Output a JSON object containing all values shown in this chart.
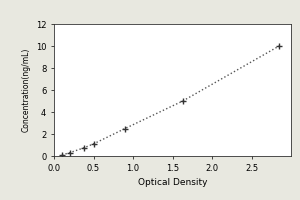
{
  "x_data": [
    0.1,
    0.2,
    0.38,
    0.5,
    0.9,
    1.63,
    2.85
  ],
  "y_data": [
    0.1,
    0.3,
    0.75,
    1.1,
    2.5,
    5.0,
    10.0
  ],
  "xlabel": "Optical Density",
  "ylabel": "Concentration(ng/mL)",
  "xlim": [
    0,
    3.0
  ],
  "ylim": [
    0,
    12
  ],
  "xticks": [
    0,
    0.5,
    1.0,
    1.5,
    2.0,
    2.5
  ],
  "yticks": [
    0,
    2,
    4,
    6,
    8,
    10,
    12
  ],
  "line_color": "#555555",
  "marker_color": "#333333",
  "plot_bg_color": "#ffffff",
  "fig_bg_color": "#e8e8e0",
  "line_style": "dotted",
  "marker_style": "+"
}
